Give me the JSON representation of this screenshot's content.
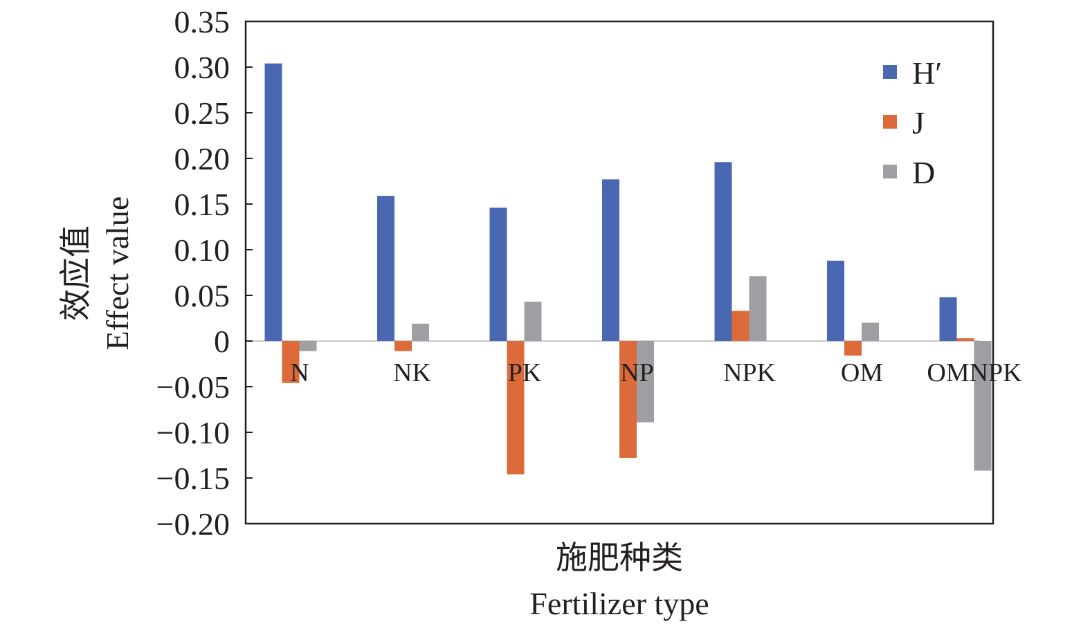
{
  "chart_data": {
    "type": "bar",
    "categories": [
      "N",
      "NK",
      "PK",
      "NP",
      "NPK",
      "OM",
      "OMNPK"
    ],
    "series": [
      {
        "name": "H′",
        "color": "#4a67b2",
        "values": [
          0.304,
          0.159,
          0.146,
          0.177,
          0.196,
          0.088,
          0.048
        ]
      },
      {
        "name": "J",
        "color": "#dd6a3b",
        "values": [
          -0.046,
          -0.011,
          -0.146,
          -0.128,
          0.033,
          -0.016,
          0.003
        ]
      },
      {
        "name": "D",
        "color": "#9d9fa2",
        "values": [
          -0.011,
          0.019,
          0.043,
          -0.089,
          0.071,
          0.02,
          -0.142
        ]
      }
    ],
    "ylim": [
      -0.2,
      0.35
    ],
    "yticks": [
      "0.35",
      "0.30",
      "0.25",
      "0.20",
      "0.15",
      "0.10",
      "0.05",
      "0",
      "−0.05",
      "−0.10",
      "−0.15",
      "−0.20"
    ],
    "ytick_values": [
      0.35,
      0.3,
      0.25,
      0.2,
      0.15,
      0.1,
      0.05,
      0,
      -0.05,
      -0.1,
      -0.15,
      -0.2
    ],
    "ylabel_cn": "效应值",
    "ylabel_en": "Effect value",
    "xlabel_cn": "施肥种类",
    "xlabel_en": "Fertilizer type",
    "legend_position": "top-right",
    "grid": false
  }
}
